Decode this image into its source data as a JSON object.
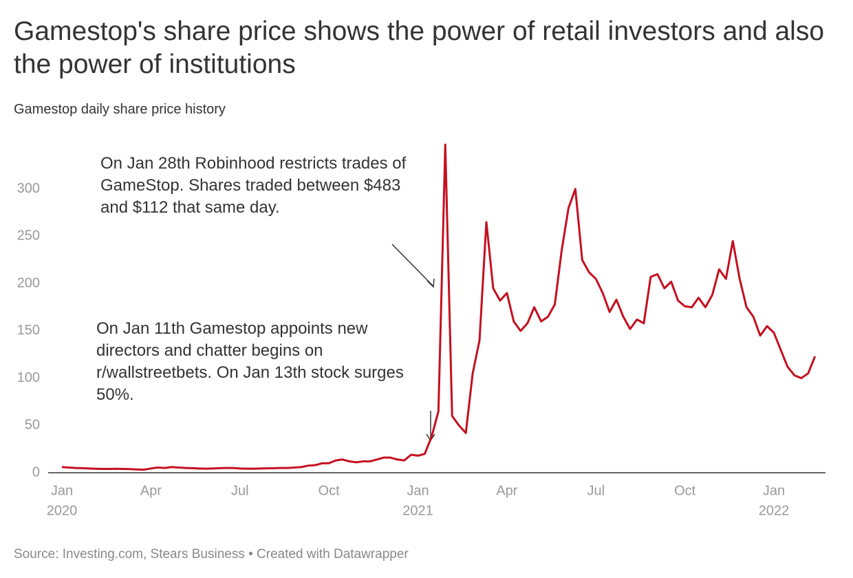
{
  "chart_data": {
    "type": "line",
    "title": "Gamestop's share price shows the power of retail investors and also the power of institutions",
    "subtitle": "Gamestop daily share price history",
    "source": "Source: Investing.com, Stears Business • Created with Datawrapper",
    "annotations": [
      "On Jan 28th Robinhood restricts trades of GameStop. Shares traded between $483 and $112 that same day.",
      "On Jan 11th Gamestop appoints new directors and chatter begins on r/wallstreetbets. On Jan 13th stock surges 50%."
    ],
    "categories": [
      "Jan",
      null,
      null,
      null,
      null,
      null,
      null,
      null,
      null,
      null,
      null,
      null,
      null,
      "Apr",
      null,
      null,
      null,
      null,
      null,
      null,
      null,
      null,
      null,
      null,
      null,
      null,
      "Jul",
      null,
      null,
      null,
      null,
      null,
      null,
      null,
      null,
      null,
      null,
      null,
      null,
      "Oct",
      null,
      null,
      null,
      null,
      null,
      null,
      null,
      null,
      null,
      null,
      null,
      null,
      "Jan",
      null,
      null,
      null,
      null,
      null,
      null,
      null,
      null,
      null,
      null,
      null,
      null,
      "Apr",
      null,
      null,
      null,
      null,
      null,
      null,
      null,
      null,
      null,
      null,
      null,
      null,
      "Jul",
      null,
      null,
      null,
      null,
      null,
      null,
      null,
      null,
      null,
      null,
      null,
      null,
      "Oct",
      null,
      null,
      null,
      null,
      null,
      null,
      null,
      null,
      null,
      null,
      null,
      null,
      "Jan",
      null,
      null,
      null,
      null,
      null,
      null
    ],
    "year_labels": [
      "2020",
      null,
      null,
      null,
      null,
      null,
      null,
      null,
      null,
      null,
      null,
      null,
      null,
      null,
      null,
      null,
      null,
      null,
      null,
      null,
      null,
      null,
      null,
      null,
      null,
      null,
      null,
      null,
      null,
      null,
      null,
      null,
      null,
      null,
      null,
      null,
      null,
      null,
      null,
      null,
      null,
      null,
      null,
      null,
      null,
      null,
      null,
      null,
      null,
      null,
      null,
      null,
      "2021",
      null,
      null,
      null,
      null,
      null,
      null,
      null,
      null,
      null,
      null,
      null,
      null,
      null,
      null,
      null,
      null,
      null,
      null,
      null,
      null,
      null,
      null,
      null,
      null,
      null,
      null,
      null,
      null,
      null,
      null,
      null,
      null,
      null,
      null,
      null,
      null,
      null,
      null,
      null,
      null,
      null,
      null,
      null,
      null,
      null,
      null,
      null,
      null,
      null,
      null,
      null,
      "2022",
      null,
      null,
      null,
      null,
      null,
      null
    ],
    "series": [
      {
        "name": "GameStop",
        "color": "#c40f1e",
        "values": [
          6,
          5.5,
          5,
          4.8,
          4.5,
          4.2,
          4,
          4,
          4.2,
          4,
          3.8,
          3.5,
          3.2,
          4.5,
          5.5,
          5,
          6,
          5.5,
          5,
          4.8,
          4.5,
          4.3,
          4.5,
          4.8,
          5,
          5,
          4.5,
          4.3,
          4.3,
          4.5,
          4.6,
          4.8,
          5,
          5,
          5.5,
          6,
          7.5,
          8,
          10,
          10,
          13,
          14,
          12,
          11,
          12,
          12,
          14,
          16,
          16,
          14,
          13,
          19,
          18,
          20,
          38,
          65,
          347,
          60,
          50,
          42,
          105,
          140,
          265,
          195,
          182,
          190,
          160,
          150,
          158,
          175,
          160,
          165,
          178,
          235,
          280,
          300,
          225,
          212,
          205,
          190,
          170,
          183,
          165,
          152,
          162,
          158,
          207,
          210,
          195,
          202,
          182,
          176,
          175,
          185,
          175,
          188,
          215,
          205,
          245,
          205,
          175,
          165,
          145,
          155,
          148,
          130,
          112,
          103,
          100,
          105,
          123
        ]
      }
    ],
    "ylim": [
      0,
      350
    ],
    "yticks": [
      0,
      50,
      100,
      150,
      200,
      250,
      300
    ],
    "grid": false
  }
}
